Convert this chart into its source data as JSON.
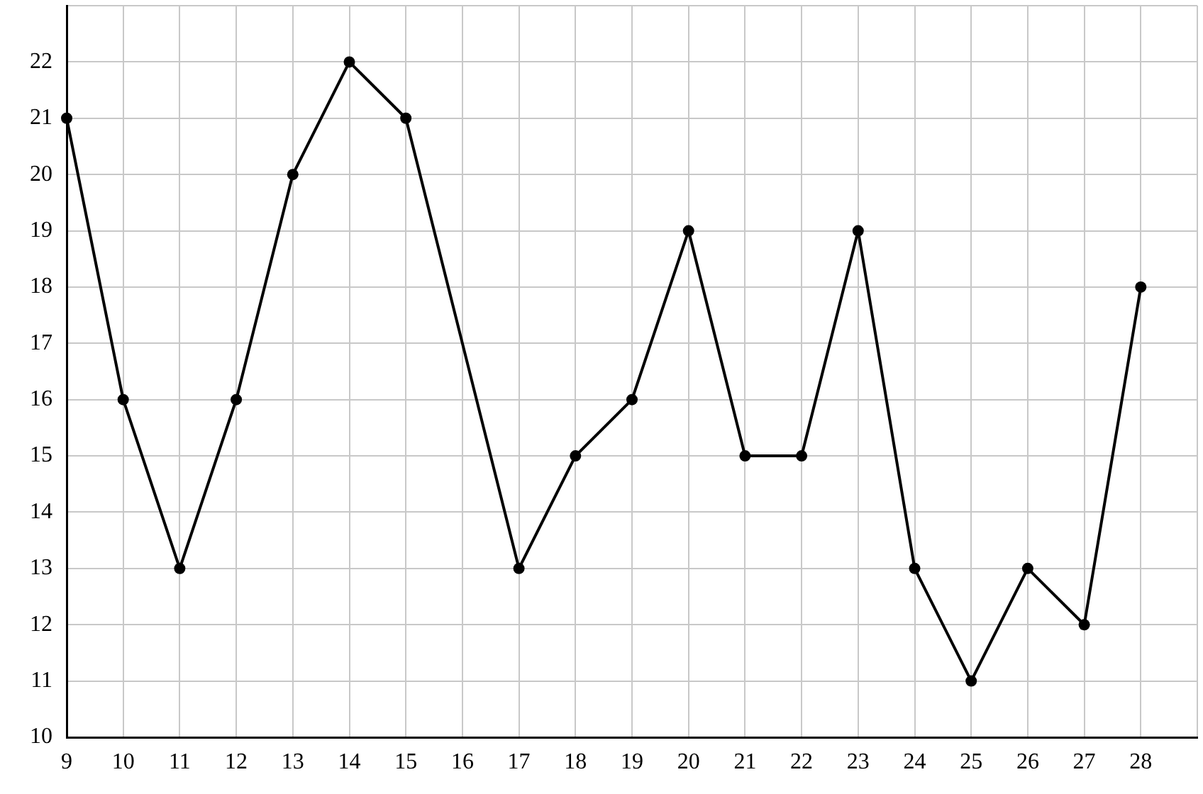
{
  "chart_data": {
    "type": "line",
    "x": [
      9,
      10,
      11,
      12,
      13,
      14,
      15,
      17,
      18,
      19,
      20,
      21,
      22,
      23,
      24,
      25,
      26,
      27,
      28
    ],
    "series": [
      {
        "color": "#000000",
        "values": [
          21,
          16,
          13,
          16,
          20,
          22,
          21,
          13,
          15,
          16,
          19,
          15,
          15,
          19,
          13,
          11,
          13,
          12,
          18
        ]
      }
    ],
    "xlim": [
      9,
      29
    ],
    "ylim": [
      10,
      23
    ],
    "xticks": [
      9,
      10,
      11,
      12,
      13,
      14,
      15,
      16,
      17,
      18,
      19,
      20,
      21,
      22,
      23,
      24,
      25,
      26,
      27,
      28,
      {
        "value": 29,
        "label": null
      }
    ],
    "yticks": [
      10,
      11,
      12,
      13,
      14,
      15,
      16,
      17,
      18,
      19,
      20,
      21,
      22,
      {
        "value": 23,
        "label": null
      }
    ],
    "grid": true,
    "marker": "circle",
    "line_style": "solid"
  }
}
